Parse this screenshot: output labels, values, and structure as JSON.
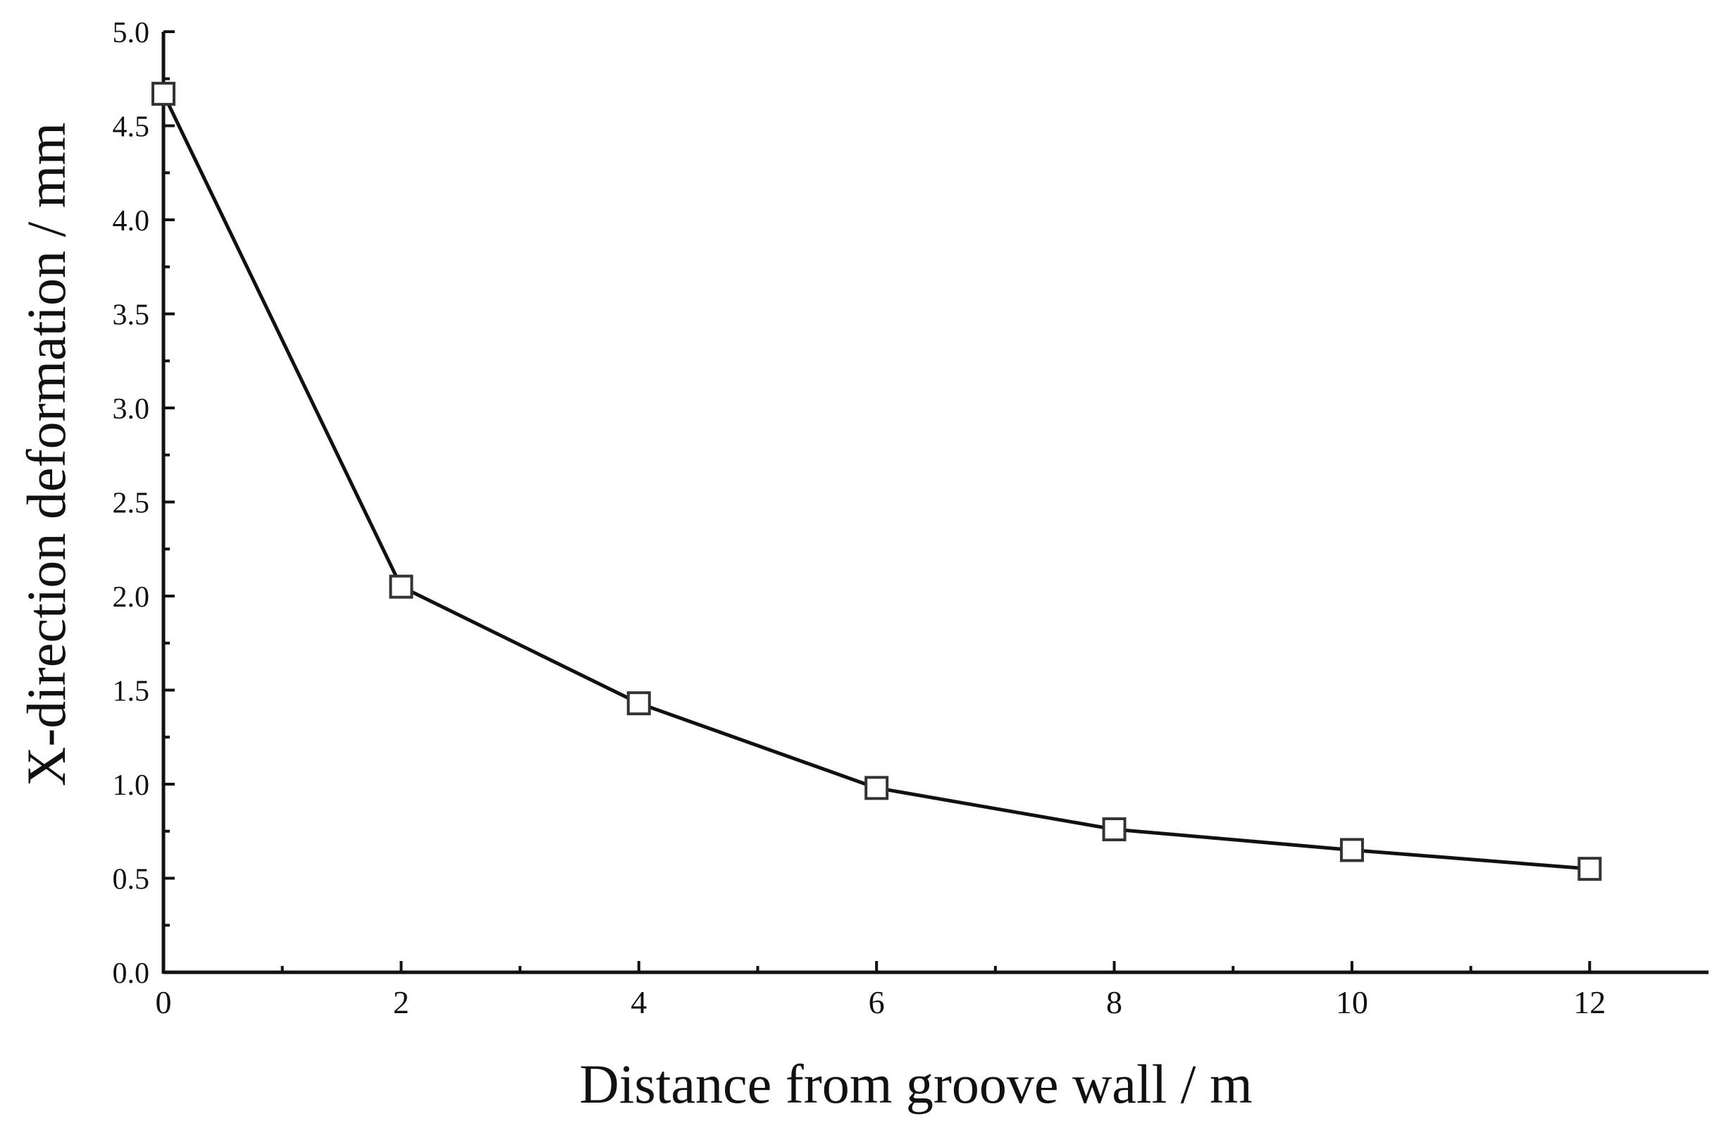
{
  "chart_data": {
    "type": "line",
    "title": "",
    "xlabel": "Distance from groove wall / m",
    "ylabel": "X-direction deformation / mm",
    "xlim": [
      0,
      13
    ],
    "ylim": [
      0,
      5
    ],
    "x_ticks": [
      0,
      2,
      4,
      6,
      8,
      10,
      12
    ],
    "x_tick_labels": [
      "0",
      "2",
      "4",
      "6",
      "8",
      "10",
      "12"
    ],
    "y_ticks": [
      0,
      0.5,
      1.0,
      1.5,
      2.0,
      2.5,
      3.0,
      3.5,
      4.0,
      4.5,
      5.0
    ],
    "y_tick_labels": [
      "0.0",
      "0.5",
      "1.0",
      "1.5",
      "2.0",
      "2.5",
      "3.0",
      "3.5",
      "4.0",
      "4.5",
      "5.0"
    ],
    "grid": false,
    "legend": "none",
    "series": [
      {
        "marker": "hollow-square",
        "color": "#111111",
        "x": [
          0,
          2,
          4,
          6,
          8,
          10,
          12
        ],
        "y": [
          4.67,
          2.05,
          1.43,
          0.98,
          0.76,
          0.65,
          0.55
        ]
      }
    ]
  }
}
